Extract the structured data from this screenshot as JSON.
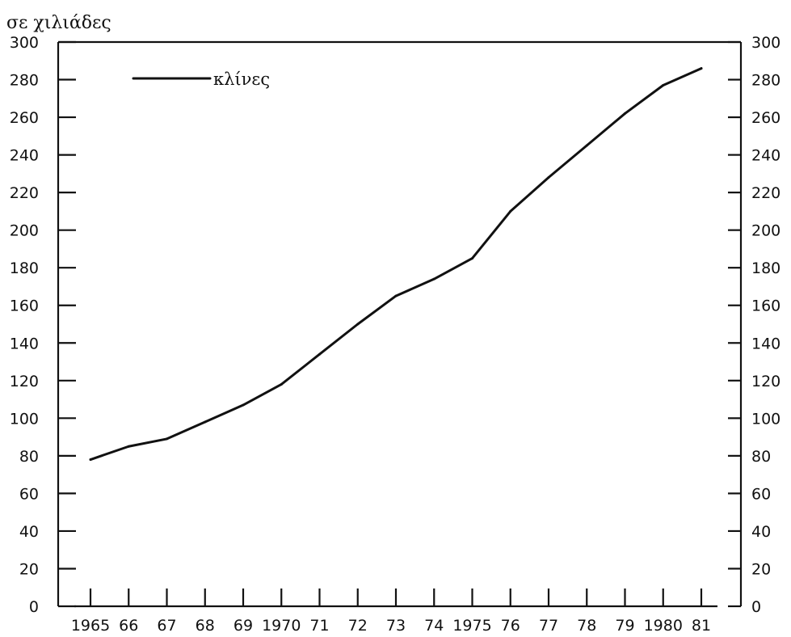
{
  "chart_data": {
    "type": "line",
    "title": "",
    "unit_label": "σε χιλιάδες",
    "xlabel": "",
    "ylabel": "",
    "ylim": [
      0,
      300
    ],
    "yticks": [
      0,
      20,
      40,
      60,
      80,
      100,
      120,
      140,
      160,
      180,
      200,
      220,
      240,
      260,
      280,
      300
    ],
    "ytick_labels": [
      "0",
      "20",
      "40",
      "60",
      "80",
      "100",
      "120",
      "140",
      "160",
      "180",
      "200",
      "220",
      "240",
      "260",
      "280",
      "300"
    ],
    "categories": [
      "1965",
      "66",
      "67",
      "68",
      "69",
      "1970",
      "71",
      "72",
      "73",
      "74",
      "1975",
      "76",
      "77",
      "78",
      "79",
      "1980",
      "81"
    ],
    "years": [
      1965,
      1966,
      1967,
      1968,
      1969,
      1970,
      1971,
      1972,
      1973,
      1974,
      1975,
      1976,
      1977,
      1978,
      1979,
      1980,
      1981
    ],
    "series": [
      {
        "name": "κλίνες",
        "values": [
          78,
          85,
          89,
          98,
          107,
          118,
          134,
          150,
          165,
          174,
          185,
          210,
          228,
          245,
          262,
          277,
          286
        ]
      }
    ],
    "legend": {
      "position": "top-left"
    },
    "grid": false,
    "right_axis": true
  }
}
